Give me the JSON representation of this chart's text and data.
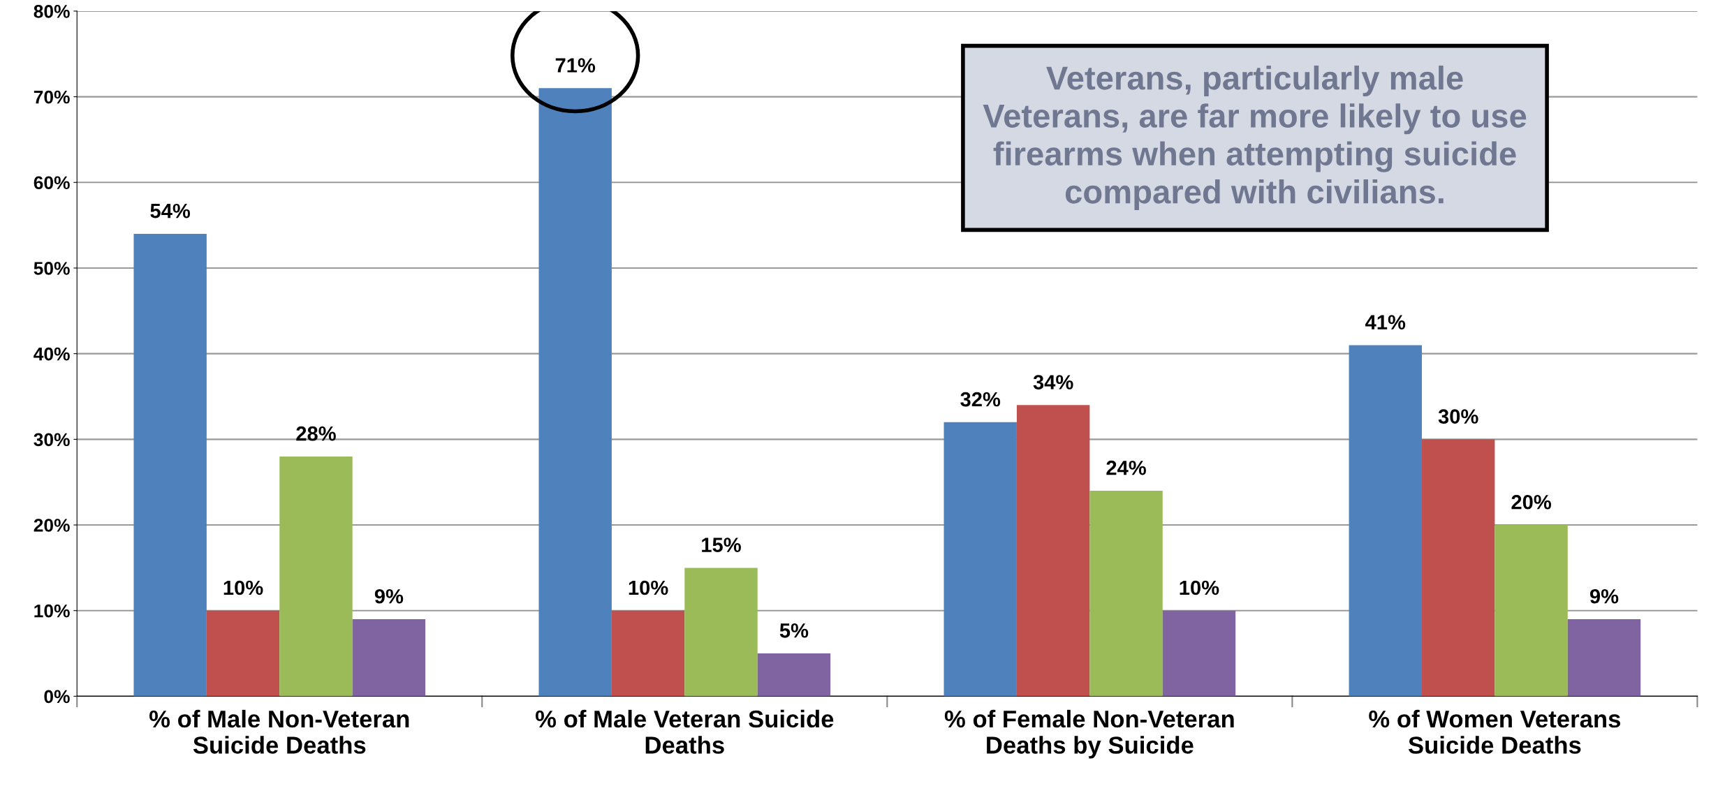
{
  "chart_data": {
    "type": "bar",
    "categories": [
      "% of Male Non-Veteran\nSuicide Deaths",
      "% of Male Veteran Suicide\nDeaths",
      "% of Female Non-Veteran\nDeaths by Suicide",
      "% of Women Veterans\nSuicide Deaths"
    ],
    "series": [
      {
        "color": "#4f81bd",
        "values": [
          54,
          71,
          32,
          41
        ],
        "value_labels": [
          "54%",
          "71%",
          "32%",
          "41%"
        ]
      },
      {
        "color": "#c0504d",
        "values": [
          10,
          10,
          34,
          30
        ],
        "value_labels": [
          "10%",
          "10%",
          "34%",
          "30%"
        ]
      },
      {
        "color": "#9bbb59",
        "values": [
          28,
          15,
          24,
          20
        ],
        "value_labels": [
          "28%",
          "15%",
          "24%",
          "20%"
        ]
      },
      {
        "color": "#8064a2",
        "values": [
          9,
          5,
          10,
          9
        ],
        "value_labels": [
          "9%",
          "5%",
          "10%",
          "9%"
        ]
      }
    ],
    "ylim": [
      0,
      80
    ],
    "yticks": [
      {
        "value": 0,
        "label": "0%"
      },
      {
        "value": 10,
        "label": "10%"
      },
      {
        "value": 20,
        "label": "20%"
      },
      {
        "value": 30,
        "label": "30%"
      },
      {
        "value": 40,
        "label": "40%"
      },
      {
        "value": 50,
        "label": "50%"
      },
      {
        "value": 60,
        "label": "60%"
      },
      {
        "value": 70,
        "label": "70%"
      },
      {
        "value": 80,
        "label": "80%"
      }
    ],
    "grid": "y",
    "legend": false,
    "annotations": [
      "Veterans, particularly male\nVeterans, are far more likely to use\nfirearms when attempting suicide\ncompared with civilians."
    ]
  }
}
